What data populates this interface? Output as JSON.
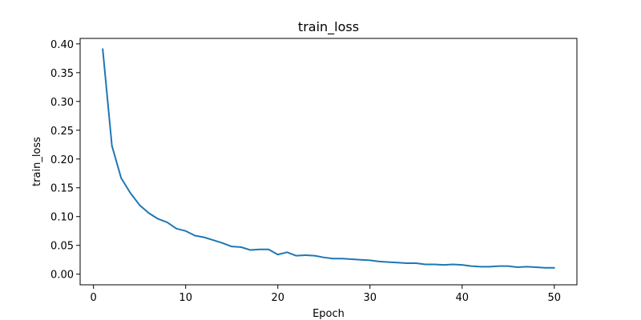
{
  "chart_data": {
    "type": "line",
    "title": "train_loss",
    "xlabel": "Epoch",
    "ylabel": "train_loss",
    "xlim": [
      -1.45,
      52.45
    ],
    "ylim": [
      -0.0185,
      0.4095
    ],
    "xticks": [
      0,
      10,
      20,
      30,
      40,
      50
    ],
    "yticks": [
      0.0,
      0.05,
      0.1,
      0.15,
      0.2,
      0.25,
      0.3,
      0.35,
      0.4
    ],
    "ytick_labels": [
      "0.00",
      "0.05",
      "0.10",
      "0.15",
      "0.20",
      "0.25",
      "0.30",
      "0.35",
      "0.40"
    ],
    "grid": false,
    "line_color": "#1f77b4",
    "series": [
      {
        "x": [
          1,
          2,
          3,
          4,
          5,
          6,
          7,
          8,
          9,
          10,
          11,
          12,
          13,
          14,
          15,
          16,
          17,
          18,
          19,
          20,
          21,
          22,
          23,
          24,
          25,
          26,
          27,
          28,
          29,
          30,
          31,
          32,
          33,
          34,
          35,
          36,
          37,
          38,
          39,
          40,
          41,
          42,
          43,
          44,
          45,
          46,
          47,
          48,
          49,
          50
        ],
        "values": [
          0.391,
          0.223,
          0.167,
          0.141,
          0.12,
          0.106,
          0.096,
          0.09,
          0.079,
          0.075,
          0.067,
          0.064,
          0.059,
          0.054,
          0.048,
          0.047,
          0.042,
          0.043,
          0.043,
          0.034,
          0.038,
          0.032,
          0.033,
          0.032,
          0.029,
          0.027,
          0.027,
          0.026,
          0.025,
          0.024,
          0.022,
          0.021,
          0.02,
          0.019,
          0.019,
          0.017,
          0.017,
          0.016,
          0.017,
          0.016,
          0.014,
          0.013,
          0.013,
          0.014,
          0.014,
          0.012,
          0.013,
          0.012,
          0.011,
          0.011
        ]
      }
    ]
  }
}
